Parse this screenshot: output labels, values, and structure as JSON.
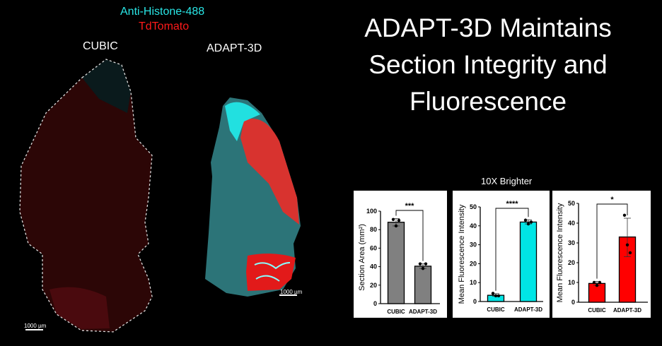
{
  "legend": {
    "channel_1": "Anti-Histone-488",
    "channel_1_color": "#29e6e6",
    "channel_2": "TdTomato",
    "channel_2_color": "#ff1a1a"
  },
  "images": {
    "left_label": "CUBIC",
    "right_label": "ADAPT-3D",
    "left_scale_bar": "1000 µm",
    "right_scale_bar": "1000 µm"
  },
  "title": "ADAPT-3D Maintains Section Integrity and Fluorescence",
  "annotation": "10X Brighter",
  "chart_data": [
    {
      "type": "bar",
      "categories": [
        "CUBIC",
        "ADAPT-3D"
      ],
      "values": [
        88,
        40.5
      ],
      "error": [
        [
          84,
          92
        ],
        [
          38,
          43
        ]
      ],
      "points": [
        [
          91,
          84,
          90
        ],
        [
          43,
          38,
          43
        ]
      ],
      "ylabel": "Section Area (mm²)",
      "ylim": [
        0,
        100
      ],
      "yticks": [
        0,
        20,
        40,
        60,
        80,
        100
      ],
      "bar_color": "#808080",
      "significance": "***"
    },
    {
      "type": "bar",
      "categories": [
        "CUBIC",
        "ADAPT-3D"
      ],
      "values": [
        3.3,
        42
      ],
      "error": [
        [
          2.8,
          4.2
        ],
        [
          41,
          43.2
        ]
      ],
      "points": [
        [
          4.3,
          3.0,
          3.0
        ],
        [
          43,
          41,
          42
        ]
      ],
      "ylabel": "Mean Fluorescence Intensity",
      "ylim": [
        0,
        50
      ],
      "yticks": [
        0,
        10,
        20,
        30,
        40,
        50
      ],
      "bar_color": "#00e5e5",
      "significance": "****"
    },
    {
      "type": "bar",
      "categories": [
        "CUBIC",
        "ADAPT-3D"
      ],
      "values": [
        9.5,
        33
      ],
      "error": [
        [
          8.5,
          10.5
        ],
        [
          23,
          42.5
        ]
      ],
      "points": [
        [
          10,
          8.5,
          10
        ],
        [
          44,
          29,
          25
        ]
      ],
      "ylabel": "Mean Fluorescence Intensity",
      "ylim": [
        0,
        50
      ],
      "yticks": [
        0,
        10,
        20,
        30,
        40,
        50
      ],
      "bar_color": "#ff0000",
      "significance": "*"
    }
  ]
}
